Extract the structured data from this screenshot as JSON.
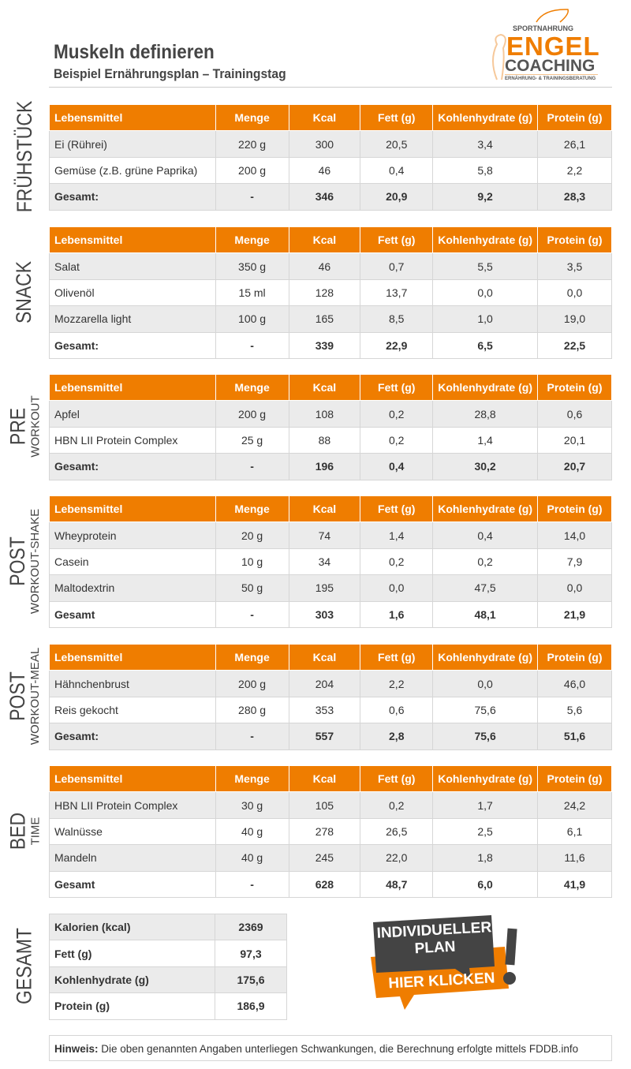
{
  "header": {
    "title": "Muskeln definieren",
    "subtitle": "Beispiel Ernährungsplan – Trainingstag"
  },
  "logo": {
    "top": "SPORTNAHRUNG",
    "main": "ENGEL",
    "sub": "COACHING",
    "tagline": "ERNÄHRUNG- & TRAININGSBERATUNG"
  },
  "columns": [
    "Lebensmittel",
    "Menge",
    "Kcal",
    "Fett (g)",
    "Kohlenhydrate (g)",
    "Protein (g)"
  ],
  "colors": {
    "accent": "#ef7d00",
    "row_alt": "#ebebeb",
    "dark": "#444444"
  },
  "meals": [
    {
      "label": "FRÜHSTÜCK",
      "sub": "",
      "rows": [
        [
          "Ei (Rührei)",
          "220 g",
          "300",
          "20,5",
          "3,4",
          "26,1"
        ],
        [
          "Gemüse (z.B. grüne Paprika)",
          "200 g",
          "46",
          "0,4",
          "5,8",
          "2,2"
        ]
      ],
      "total": [
        "Gesamt:",
        "-",
        "346",
        "20,9",
        "9,2",
        "28,3"
      ]
    },
    {
      "label": "SNACK",
      "sub": "",
      "rows": [
        [
          "Salat",
          "350 g",
          "46",
          "0,7",
          "5,5",
          "3,5"
        ],
        [
          "Olivenöl",
          "15 ml",
          "128",
          "13,7",
          "0,0",
          "0,0"
        ],
        [
          "Mozzarella light",
          "100 g",
          "165",
          "8,5",
          "1,0",
          "19,0"
        ]
      ],
      "total": [
        "Gesamt:",
        "-",
        "339",
        "22,9",
        "6,5",
        "22,5"
      ]
    },
    {
      "label": "PRE",
      "sub": "WORKOUT",
      "rows": [
        [
          "Apfel",
          "200 g",
          "108",
          "0,2",
          "28,8",
          "0,6"
        ],
        [
          "HBN LII Protein Complex",
          "25 g",
          "88",
          "0,2",
          "1,4",
          "20,1"
        ]
      ],
      "total": [
        "Gesamt:",
        "-",
        "196",
        "0,4",
        "30,2",
        "20,7"
      ]
    },
    {
      "label": "POST",
      "sub": "WORKOUT-SHAKE",
      "rows": [
        [
          "Wheyprotein",
          "20 g",
          "74",
          "1,4",
          "0,4",
          "14,0"
        ],
        [
          "Casein",
          "10 g",
          "34",
          "0,2",
          "0,2",
          "7,9"
        ],
        [
          "Maltodextrin",
          "50 g",
          "195",
          "0,0",
          "47,5",
          "0,0"
        ]
      ],
      "total": [
        "Gesamt",
        "-",
        "303",
        "1,6",
        "48,1",
        "21,9"
      ]
    },
    {
      "label": "POST",
      "sub": "WORKOUT-MEAL",
      "rows": [
        [
          "Hähnchenbrust",
          "200 g",
          "204",
          "2,2",
          "0,0",
          "46,0"
        ],
        [
          "Reis gekocht",
          "280 g",
          "353",
          "0,6",
          "75,6",
          "5,6"
        ]
      ],
      "total": [
        "Gesamt:",
        "-",
        "557",
        "2,8",
        "75,6",
        "51,6"
      ]
    },
    {
      "label": "BED",
      "sub": "TIME",
      "rows": [
        [
          "HBN LII Protein Complex",
          "30 g",
          "105",
          "0,2",
          "1,7",
          "24,2"
        ],
        [
          "Walnüsse",
          "40 g",
          "278",
          "26,5",
          "2,5",
          "6,1"
        ],
        [
          "Mandeln",
          "40 g",
          "245",
          "22,0",
          "1,8",
          "11,6"
        ]
      ],
      "total": [
        "Gesamt",
        "-",
        "628",
        "48,7",
        "6,0",
        "41,9"
      ]
    }
  ],
  "summary": {
    "label": "GESAMT",
    "rows": [
      [
        "Kalorien (kcal)",
        "2369"
      ],
      [
        "Fett (g)",
        "97,3"
      ],
      [
        "Kohlenhydrate (g)",
        "175,6"
      ],
      [
        "Protein (g)",
        "186,9"
      ]
    ]
  },
  "cta": {
    "line1": "INDIVIDUELLER",
    "line2": "PLAN",
    "button": "HIER KLICKEN"
  },
  "note": {
    "label": "Hinweis:",
    "text": " Die oben genannten Angaben unterliegen Schwankungen, die Berechnung erfolgte mittels FDDB.info"
  }
}
